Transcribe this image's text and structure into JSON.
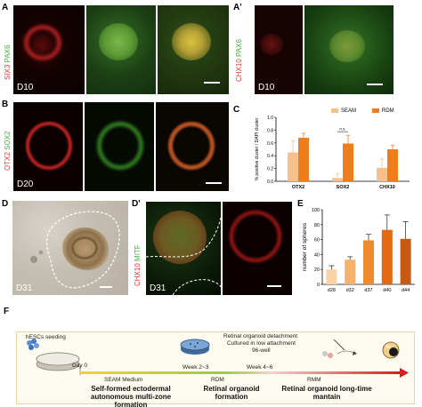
{
  "panels": {
    "A": {
      "label": "A",
      "marker_red": "SIX3",
      "marker_green": "PAX6",
      "day": "D10"
    },
    "A_prime": {
      "label": "A'",
      "marker_red": "CHX10",
      "marker_green": "PAX6",
      "day": "D10"
    },
    "B": {
      "label": "B",
      "marker_red": "OTX2",
      "marker_green": "SOX2",
      "day": "D20"
    },
    "C": {
      "label": "C"
    },
    "D": {
      "label": "D",
      "day": "D31"
    },
    "D_prime": {
      "label": "D'",
      "marker_red": "CHX10",
      "marker_green": "MITF",
      "day": "D31"
    },
    "E": {
      "label": "E"
    },
    "F": {
      "label": "F",
      "seeding": "hESCs seeding",
      "day0": "Day 0",
      "seam_medium": "SEAM Medium",
      "week2": "Week 2~3",
      "week4": "Week 4~6",
      "rdm": "RDM",
      "rmm": "RMM",
      "detach_line1": "Retinal organoid detachment",
      "detach_line2": "Cultured in low attachment",
      "detach_line3": "96-well",
      "stage1": "Self-formed ectodermal autonomous multi-zone formation",
      "stage2": "Retinal organoid formation",
      "stage3": "Retinal organoid long-time mantain"
    }
  },
  "colors": {
    "seam": "#f6c08a",
    "rdm": "#ef7d1b",
    "red_channel": "#e0342e",
    "green_channel": "#3fae3f"
  },
  "chart_data": [
    {
      "type": "bar",
      "panel": "C",
      "categories": [
        "OTX2",
        "SOX2",
        "CHX10"
      ],
      "ylabel": "% positive cluster / DAPI cluster",
      "ylim": [
        0,
        1.0
      ],
      "yticks": [
        "0.0",
        "0.2",
        "0.4",
        "0.6",
        "0.8",
        "1.0"
      ],
      "legend_position": "top-right",
      "series": [
        {
          "name": "SEAM",
          "values": [
            0.45,
            0.05,
            0.21
          ],
          "errors": [
            0.18,
            0.07,
            0.14
          ],
          "color": "#f6c08a"
        },
        {
          "name": "RDM",
          "values": [
            0.68,
            0.59,
            0.5
          ],
          "errors": [
            0.07,
            0.13,
            0.06
          ],
          "color": "#ef7d1b"
        }
      ],
      "annotation": "n.s.",
      "annotation_category": "SOX2"
    },
    {
      "type": "bar",
      "panel": "E",
      "categories": [
        "d28",
        "d32",
        "d37",
        "d40",
        "d44"
      ],
      "ylabel": "number of spheres",
      "ylim": [
        0,
        100
      ],
      "yticks": [
        "0",
        "20",
        "40",
        "60",
        "80",
        "100"
      ],
      "values": [
        20,
        33,
        59,
        73,
        61
      ],
      "errors": [
        5,
        4,
        8,
        20,
        23
      ],
      "colors": [
        "#f9d3a8",
        "#f6b26a",
        "#ef8b2d",
        "#e36a12",
        "#c75a12"
      ]
    }
  ]
}
